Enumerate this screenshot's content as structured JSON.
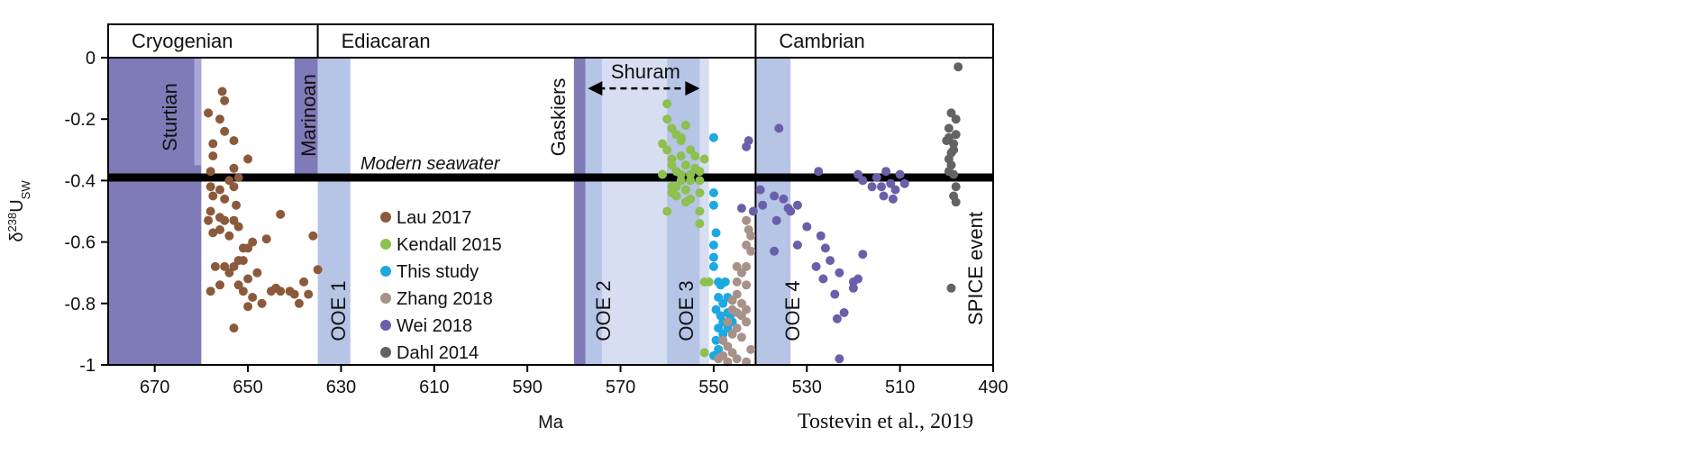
{
  "chart_data": {
    "type": "scatter",
    "xlabel": "Ma",
    "ylabel": "δ238USW",
    "ylabel_parts": {
      "delta": "δ",
      "sup": "238",
      "base": "U",
      "sub": "SW"
    },
    "xlim": [
      680,
      490
    ],
    "ylim": [
      -1,
      0
    ],
    "x_reversed": true,
    "xticks": [
      670,
      650,
      630,
      610,
      590,
      570,
      550,
      530,
      510,
      490
    ],
    "yticks": [
      0,
      -0.2,
      -0.4,
      -0.6,
      -0.8,
      -1
    ],
    "ytick_labels": [
      "0",
      "-0.2",
      "-0.4",
      "-0.6",
      "-0.8",
      "-1"
    ],
    "periods": [
      {
        "label": "Cryogenian",
        "start": 680,
        "end": 635
      },
      {
        "label": "Ediacaran",
        "start": 635,
        "end": 541
      },
      {
        "label": "Cambrian",
        "start": 541,
        "end": 490
      }
    ],
    "period_boundary_lines": [
      541
    ],
    "shaded_intervals": [
      {
        "label": "",
        "start": 680,
        "end": 660,
        "color": "#7f7bb8"
      },
      {
        "label": "Sturtian",
        "start": 661.5,
        "end": 660,
        "color": "#aaa6d6",
        "label_range": [
          0,
          -0.35
        ]
      },
      {
        "label": "Marinoan",
        "start": 640,
        "end": 635,
        "color": "#7f7bb8",
        "label_range": [
          0,
          -0.4
        ]
      },
      {
        "label": "OOE 1",
        "start": 635,
        "end": 628,
        "color": "#b6c4e6"
      },
      {
        "label": "Gaskiers",
        "start": 580,
        "end": 577.5,
        "color": "#7f7bb8"
      },
      {
        "label": "OOE 2",
        "start": 577.5,
        "end": 571,
        "color": "#b6c4e6"
      },
      {
        "label": "Shuram",
        "start": 574,
        "end": 551,
        "color": "#d7def2"
      },
      {
        "label": "OOE 3",
        "start": 560,
        "end": 553,
        "color": "#b6c4e6"
      },
      {
        "label": "OOE 4",
        "start": 541,
        "end": 533.5,
        "color": "#b6c4e6"
      }
    ],
    "shuram_arrow": {
      "label": "Shuram",
      "from": 577,
      "to": 553,
      "y": -0.1
    },
    "modern_seawater": {
      "label": "Modern seawater",
      "y": -0.39
    },
    "spice_label": "SPICE event",
    "legend_position": "center",
    "series": [
      {
        "name": "Lau 2017",
        "color": "#8b5a3c",
        "points": [
          [
            655.5,
            -0.11
          ],
          [
            655,
            -0.14
          ],
          [
            658.5,
            -0.18
          ],
          [
            656,
            -0.2
          ],
          [
            657.5,
            -0.28
          ],
          [
            650,
            -0.33
          ],
          [
            655,
            -0.24
          ],
          [
            653,
            -0.27
          ],
          [
            657.5,
            -0.32
          ],
          [
            658,
            -0.37
          ],
          [
            653,
            -0.36
          ],
          [
            652,
            -0.39
          ],
          [
            654,
            -0.4
          ],
          [
            658,
            -0.42
          ],
          [
            656,
            -0.43
          ],
          [
            653,
            -0.42
          ],
          [
            657.5,
            -0.45
          ],
          [
            655,
            -0.46
          ],
          [
            652.5,
            -0.48
          ],
          [
            658,
            -0.5
          ],
          [
            656,
            -0.52
          ],
          [
            655,
            -0.53
          ],
          [
            658.5,
            -0.53
          ],
          [
            653,
            -0.53
          ],
          [
            656,
            -0.56
          ],
          [
            652,
            -0.55
          ],
          [
            657.5,
            -0.57
          ],
          [
            654,
            -0.58
          ],
          [
            649,
            -0.6
          ],
          [
            646,
            -0.59
          ],
          [
            643,
            -0.51
          ],
          [
            651,
            -0.62
          ],
          [
            650,
            -0.62
          ],
          [
            652,
            -0.66
          ],
          [
            655,
            -0.68
          ],
          [
            657,
            -0.68
          ],
          [
            653,
            -0.68
          ],
          [
            651,
            -0.66
          ],
          [
            654,
            -0.7
          ],
          [
            648,
            -0.7
          ],
          [
            650,
            -0.72
          ],
          [
            656,
            -0.74
          ],
          [
            652,
            -0.74
          ],
          [
            658,
            -0.76
          ],
          [
            651,
            -0.76
          ],
          [
            649,
            -0.78
          ],
          [
            644,
            -0.75
          ],
          [
            645,
            -0.76
          ],
          [
            643,
            -0.76
          ],
          [
            640,
            -0.77
          ],
          [
            641,
            -0.76
          ],
          [
            638,
            -0.73
          ],
          [
            635,
            -0.69
          ],
          [
            647,
            -0.8
          ],
          [
            650,
            -0.81
          ],
          [
            637,
            -0.77
          ],
          [
            636,
            -0.58
          ],
          [
            653,
            -0.88
          ],
          [
            639,
            -0.8
          ]
        ]
      },
      {
        "name": "Kendall 2015",
        "color": "#8dc04e",
        "points": [
          [
            560,
            -0.15
          ],
          [
            559,
            -0.23
          ],
          [
            558,
            -0.25
          ],
          [
            557,
            -0.27
          ],
          [
            560,
            -0.3
          ],
          [
            555,
            -0.3
          ],
          [
            559,
            -0.33
          ],
          [
            556,
            -0.35
          ],
          [
            558,
            -0.37
          ],
          [
            561,
            -0.28
          ],
          [
            557,
            -0.4
          ],
          [
            555,
            -0.4
          ],
          [
            553,
            -0.4
          ],
          [
            559,
            -0.42
          ],
          [
            556,
            -0.43
          ],
          [
            558,
            -0.45
          ],
          [
            552,
            -0.33
          ],
          [
            554,
            -0.36
          ],
          [
            557,
            -0.38
          ],
          [
            556,
            -0.43
          ],
          [
            553,
            -0.5
          ],
          [
            560,
            -0.5
          ],
          [
            558,
            -0.42
          ],
          [
            555,
            -0.38
          ],
          [
            552,
            -0.73
          ],
          [
            551,
            -0.73
          ],
          [
            552,
            -0.96
          ],
          [
            556,
            -0.22
          ],
          [
            560,
            -0.2
          ],
          [
            557,
            -0.32
          ],
          [
            554,
            -0.32
          ],
          [
            561,
            -0.38
          ],
          [
            559,
            -0.44
          ],
          [
            553,
            -0.44
          ],
          [
            557,
            -0.26
          ],
          [
            555,
            -0.46
          ],
          [
            556,
            -0.47
          ],
          [
            553,
            -0.54
          ],
          [
            559,
            -0.35
          ],
          [
            553,
            -0.37
          ]
        ]
      },
      {
        "name": "This study",
        "color": "#1da8e0",
        "points": [
          [
            550,
            -0.26
          ],
          [
            550,
            -0.44
          ],
          [
            550,
            -0.48
          ],
          [
            549.5,
            -0.57
          ],
          [
            550,
            -0.61
          ],
          [
            550,
            -0.65
          ],
          [
            550,
            -0.68
          ],
          [
            549,
            -0.73
          ],
          [
            548.5,
            -0.74
          ],
          [
            547.5,
            -0.73
          ],
          [
            549,
            -0.78
          ],
          [
            548,
            -0.8
          ],
          [
            547,
            -0.78
          ],
          [
            549.5,
            -0.82
          ],
          [
            548.5,
            -0.84
          ],
          [
            548,
            -0.86
          ],
          [
            547,
            -0.88
          ],
          [
            549,
            -0.88
          ],
          [
            548,
            -0.9
          ],
          [
            549.5,
            -0.92
          ],
          [
            548,
            -0.92
          ],
          [
            547,
            -0.83
          ],
          [
            546.5,
            -0.84
          ],
          [
            546,
            -0.86
          ],
          [
            549,
            -0.95
          ],
          [
            550,
            -0.97
          ]
        ]
      },
      {
        "name": "Zhang 2018",
        "color": "#a89188",
        "points": [
          [
            543,
            -0.53
          ],
          [
            542.5,
            -0.56
          ],
          [
            542,
            -0.58
          ],
          [
            543,
            -0.61
          ],
          [
            542,
            -0.63
          ],
          [
            543,
            -0.68
          ],
          [
            545,
            -0.68
          ],
          [
            544,
            -0.7
          ],
          [
            545,
            -0.73
          ],
          [
            543,
            -0.74
          ],
          [
            545,
            -0.77
          ],
          [
            546,
            -0.79
          ],
          [
            544,
            -0.8
          ],
          [
            546,
            -0.82
          ],
          [
            545,
            -0.83
          ],
          [
            544,
            -0.84
          ],
          [
            543,
            -0.82
          ],
          [
            547,
            -0.86
          ],
          [
            545,
            -0.88
          ],
          [
            543,
            -0.86
          ],
          [
            546,
            -0.9
          ],
          [
            544,
            -0.91
          ],
          [
            548,
            -0.92
          ],
          [
            547,
            -0.94
          ],
          [
            546,
            -0.96
          ],
          [
            548,
            -0.97
          ],
          [
            545,
            -0.98
          ],
          [
            547,
            -0.99
          ],
          [
            543,
            -0.86
          ],
          [
            549,
            -0.98
          ],
          [
            542,
            -0.95
          ],
          [
            543,
            -0.99
          ]
        ]
      },
      {
        "name": "Wei 2018",
        "color": "#6a5fa8",
        "points": [
          [
            542.5,
            -0.27
          ],
          [
            543,
            -0.29
          ],
          [
            536,
            -0.23
          ],
          [
            541.5,
            -0.5
          ],
          [
            540,
            -0.43
          ],
          [
            539.5,
            -0.48
          ],
          [
            537,
            -0.45
          ],
          [
            535,
            -0.46
          ],
          [
            534,
            -0.49
          ],
          [
            536.5,
            -0.53
          ],
          [
            533.5,
            -0.5
          ],
          [
            532,
            -0.48
          ],
          [
            530,
            -0.55
          ],
          [
            527,
            -0.58
          ],
          [
            526,
            -0.62
          ],
          [
            525,
            -0.66
          ],
          [
            532,
            -0.61
          ],
          [
            528,
            -0.68
          ],
          [
            526.5,
            -0.72
          ],
          [
            523,
            -0.7
          ],
          [
            520,
            -0.73
          ],
          [
            519,
            -0.72
          ],
          [
            518,
            -0.64
          ],
          [
            520,
            -0.75
          ],
          [
            524,
            -0.77
          ],
          [
            522,
            -0.83
          ],
          [
            523.5,
            -0.85
          ],
          [
            527.5,
            -0.37
          ],
          [
            519,
            -0.38
          ],
          [
            518,
            -0.4
          ],
          [
            516,
            -0.42
          ],
          [
            515,
            -0.39
          ],
          [
            514,
            -0.42
          ],
          [
            513,
            -0.37
          ],
          [
            512,
            -0.41
          ],
          [
            511,
            -0.43
          ],
          [
            510,
            -0.38
          ],
          [
            509,
            -0.41
          ],
          [
            513.5,
            -0.45
          ],
          [
            511.5,
            -0.46
          ],
          [
            523,
            -0.98
          ],
          [
            537,
            -0.63
          ],
          [
            544,
            -0.49
          ]
        ]
      },
      {
        "name": "Dahl 2014",
        "color": "#636363",
        "points": [
          [
            497.5,
            -0.03
          ],
          [
            499,
            -0.18
          ],
          [
            498,
            -0.2
          ],
          [
            499.5,
            -0.23
          ],
          [
            498,
            -0.25
          ],
          [
            499.5,
            -0.26
          ],
          [
            498.5,
            -0.28
          ],
          [
            500,
            -0.27
          ],
          [
            499,
            -0.31
          ],
          [
            498.5,
            -0.3
          ],
          [
            499.5,
            -0.33
          ],
          [
            499,
            -0.35
          ],
          [
            498.5,
            -0.38
          ],
          [
            499.5,
            -0.37
          ],
          [
            498,
            -0.42
          ],
          [
            498.5,
            -0.45
          ],
          [
            498,
            -0.47
          ],
          [
            499,
            -0.75
          ]
        ]
      }
    ]
  },
  "caption": "Tostevin et al., 2019"
}
